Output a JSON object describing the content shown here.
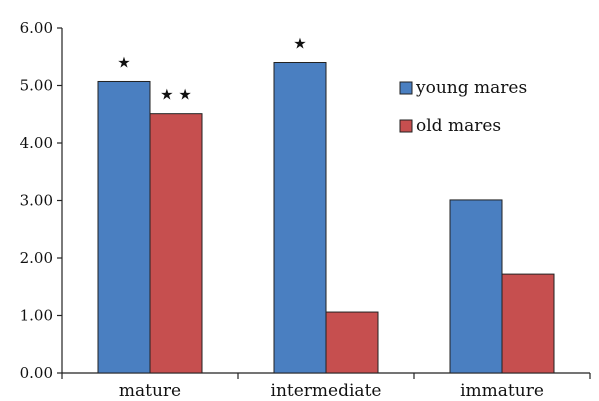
{
  "chart_data": {
    "type": "bar",
    "title": "",
    "xlabel": "",
    "ylabel": "",
    "categories": [
      "mature",
      "intermediate",
      "immature"
    ],
    "series": [
      {
        "name": "young mares",
        "color": "#4a7fc1",
        "values": [
          5.07,
          5.4,
          3.01
        ]
      },
      {
        "name": "old mares",
        "color": "#c64f4f",
        "values": [
          4.51,
          1.06,
          1.72
        ]
      }
    ],
    "ylim": [
      0,
      6
    ],
    "yticks": [
      "0.00",
      "1.00",
      "2.00",
      "3.00",
      "4.00",
      "5.00",
      "6.00"
    ],
    "grid": false,
    "legend_position": "top-right",
    "significance_marks": [
      {
        "category": "mature",
        "series": "young mares",
        "label": "★"
      },
      {
        "category": "mature",
        "series": "old mares",
        "label": "★ ★"
      },
      {
        "category": "intermediate",
        "series": "young mares",
        "label": "★"
      }
    ]
  }
}
